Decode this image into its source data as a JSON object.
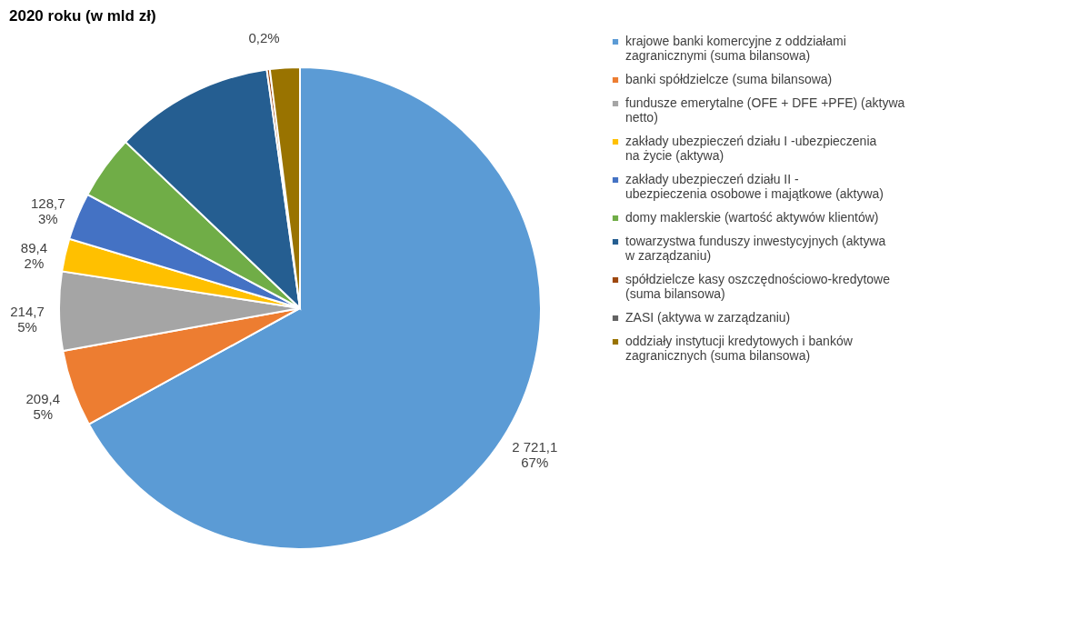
{
  "chart_data": {
    "type": "pie",
    "title": "2020 roku (w mld zł)",
    "categories": [
      "krajowe banki komercyjne z oddziałami zagranicznymi (suma bilansowa)",
      "banki spółdzielcze (suma bilansowa)",
      "fundusze emerytalne (OFE + DFE +PFE) (aktywa netto)",
      "zakłady ubezpieczeń działu I -ubezpieczenia na życie (aktywa)",
      "zakłady ubezpieczeń działu II - ubezpieczenia osobowe i majątkowe (aktywa)",
      "domy maklerskie (wartość aktywów klientów)",
      "towarzystwa funduszy inwestycyjnych (aktywa w zarządzaniu)",
      "spółdzielcze kasy oszczędnościowo-kredytowe (suma bilansowa)",
      "ZASI (aktywa w zarządzaniu)",
      "oddziały instytucji kredytowych i banków zagranicznych (suma bilansowa)"
    ],
    "values": [
      67.0,
      5.16,
      5.29,
      2.2,
      3.17,
      4.3,
      10.68,
      0.2,
      null,
      2.0
    ],
    "colors": [
      "#5b9bd5",
      "#ed7d31",
      "#a5a5a5",
      "#ffc000",
      "#4472c4",
      "#70ad47",
      "#255e91",
      "#9e480e",
      "#636363",
      "#997300"
    ],
    "value_labels": [
      "2 721,1\n67%",
      "209,4\n5%",
      "214,7\n5%",
      "89,4\n2%",
      "128,7\n3%",
      null,
      null,
      "0,2%",
      null,
      null
    ],
    "legend": "right"
  }
}
